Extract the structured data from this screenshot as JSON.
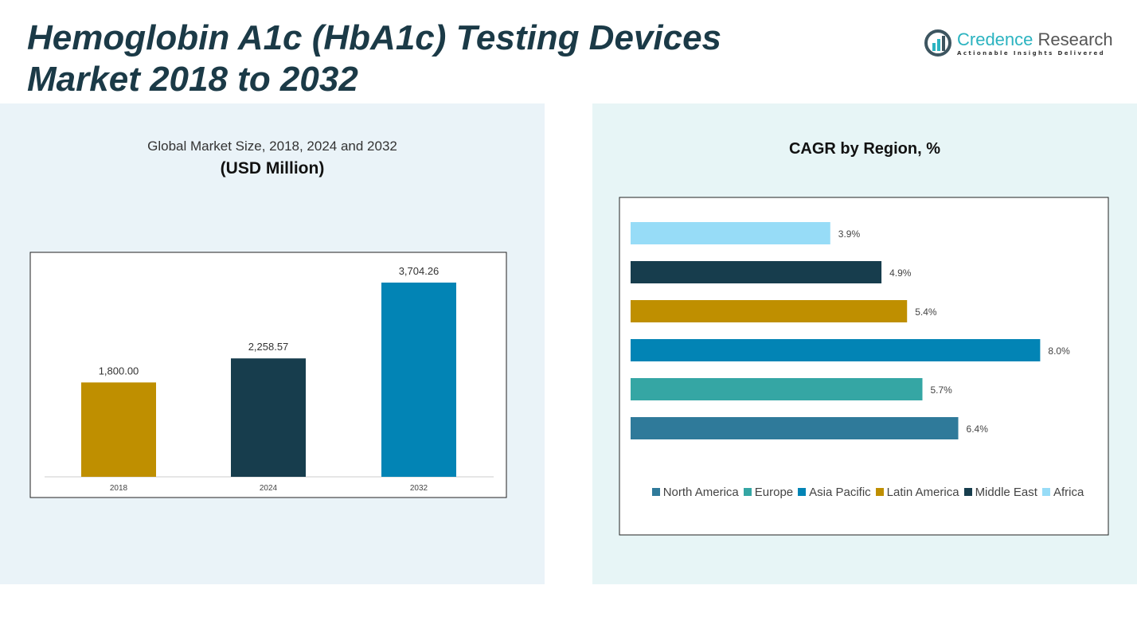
{
  "title_line1": "Hemoglobin A1c (HbA1c) Testing Devices",
  "title_line2": "Market 2018 to 2032",
  "logo": {
    "name_part1": "Credence",
    "name_part2": " Research",
    "tagline": "Actionable Insights Delivered"
  },
  "chart_data": [
    {
      "type": "bar",
      "title": "Global Market Size, 2018, 2024 and 2032",
      "subtitle": "(USD Million)",
      "categories": [
        "2018",
        "2024",
        "2032"
      ],
      "values": [
        1800.0,
        2258.57,
        3704.26
      ],
      "data_labels": [
        "1,800.00",
        "2,258.57",
        "3,704.26"
      ],
      "colors": [
        "#bf8f00",
        "#173d4d",
        "#0284b5"
      ],
      "ylim": [
        0,
        3704.26
      ],
      "grid": false
    },
    {
      "type": "bar",
      "orientation": "horizontal",
      "title": "CAGR by Region, %",
      "categories": [
        "North America",
        "Europe",
        "Asia Pacific",
        "Latin America",
        "Middle East",
        "Africa"
      ],
      "values": [
        6.4,
        5.7,
        8.0,
        5.4,
        4.9,
        3.9
      ],
      "data_labels": [
        "6.4%",
        "5.7%",
        "8.0%",
        "5.4%",
        "4.9%",
        "3.9%"
      ],
      "colors": [
        "#2f7a9a",
        "#35a6a4",
        "#0284b5",
        "#bf8f00",
        "#173d4d",
        "#97dcf7"
      ],
      "legend_placement": "bottom",
      "grid": false
    }
  ]
}
